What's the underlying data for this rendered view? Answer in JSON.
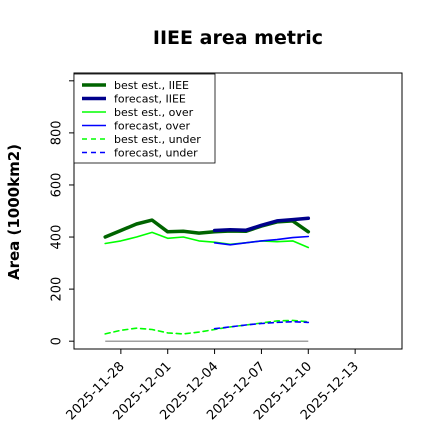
{
  "chart_data": {
    "type": "line",
    "title": "IIEE area metric",
    "ylabel": "Area (1000km2)",
    "xlabel": "",
    "xlim": [
      "2025-11-25",
      "2025-12-16"
    ],
    "ylim": [
      -30,
      1030
    ],
    "yticks": [
      0,
      200,
      400,
      600,
      800
    ],
    "xticks": [
      "2025-11-28",
      "2025-12-01",
      "2025-12-04",
      "2025-12-07",
      "2025-12-10",
      "2025-12-13"
    ],
    "highlighted_xtick": "2025-12-04",
    "highlight_color": "#228b22",
    "grid": false,
    "legend_position": "top-left",
    "baseline_value": 0,
    "series": [
      {
        "name": "best est., IIEE",
        "color": "#006400",
        "style": "solid",
        "weight": "thick",
        "x": [
          "2025-11-27",
          "2025-11-28",
          "2025-11-29",
          "2025-11-30",
          "2025-12-01",
          "2025-12-02",
          "2025-12-03",
          "2025-12-04",
          "2025-12-05",
          "2025-12-06",
          "2025-12-07",
          "2025-12-08",
          "2025-12-09",
          "2025-12-10"
        ],
        "y": [
          400,
          425,
          450,
          465,
          420,
          422,
          415,
          420,
          423,
          422,
          442,
          458,
          462,
          420
        ]
      },
      {
        "name": "forecast, IIEE",
        "color": "#00008b",
        "style": "solid",
        "weight": "thick",
        "x": [
          "2025-12-04",
          "2025-12-05",
          "2025-12-06",
          "2025-12-07",
          "2025-12-08",
          "2025-12-09",
          "2025-12-10"
        ],
        "y": [
          425,
          428,
          426,
          445,
          462,
          467,
          472
        ]
      },
      {
        "name": "best est., over",
        "color": "#00ff00",
        "style": "solid",
        "weight": "thin",
        "x": [
          "2025-11-27",
          "2025-11-28",
          "2025-11-29",
          "2025-11-30",
          "2025-12-01",
          "2025-12-02",
          "2025-12-03",
          "2025-12-04",
          "2025-12-05",
          "2025-12-06",
          "2025-12-07",
          "2025-12-08",
          "2025-12-09",
          "2025-12-10"
        ],
        "y": [
          375,
          385,
          400,
          418,
          395,
          400,
          385,
          380,
          372,
          378,
          385,
          382,
          385,
          360
        ]
      },
      {
        "name": "forecast, over",
        "color": "#0000ff",
        "style": "solid",
        "weight": "thin",
        "x": [
          "2025-12-04",
          "2025-12-05",
          "2025-12-06",
          "2025-12-07",
          "2025-12-08",
          "2025-12-09",
          "2025-12-10"
        ],
        "y": [
          378,
          370,
          378,
          385,
          390,
          398,
          402
        ]
      },
      {
        "name": "best est., under",
        "color": "#00ff00",
        "style": "dashed",
        "weight": "thin",
        "x": [
          "2025-11-27",
          "2025-11-28",
          "2025-11-29",
          "2025-11-30",
          "2025-12-01",
          "2025-12-02",
          "2025-12-03",
          "2025-12-04",
          "2025-12-05",
          "2025-12-06",
          "2025-12-07",
          "2025-12-08",
          "2025-12-09",
          "2025-12-10"
        ],
        "y": [
          28,
          42,
          50,
          45,
          32,
          28,
          35,
          45,
          55,
          62,
          70,
          78,
          80,
          75
        ]
      },
      {
        "name": "forecast, under",
        "color": "#0000ff",
        "style": "dashed",
        "weight": "thin",
        "x": [
          "2025-12-04",
          "2025-12-05",
          "2025-12-06",
          "2025-12-07",
          "2025-12-08",
          "2025-12-09",
          "2025-12-10"
        ],
        "y": [
          48,
          55,
          62,
          68,
          72,
          75,
          72
        ]
      }
    ]
  }
}
